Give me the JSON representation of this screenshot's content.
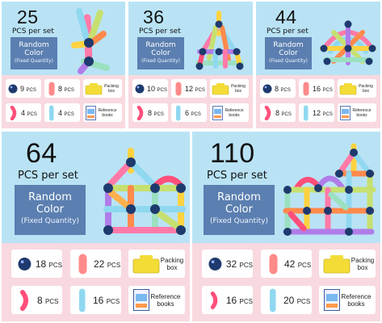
{
  "sets": [
    {
      "count": "25",
      "pcs_per_set": "PCS per set",
      "random": "Random",
      "color": "Color",
      "fixed": "(Fixed Quantity)",
      "items": [
        {
          "qty": "9",
          "unit": "PCS"
        },
        {
          "qty": "8",
          "unit": "PCS"
        },
        {
          "text": "Packing box"
        },
        {
          "qty": "4",
          "unit": "PCS"
        },
        {
          "qty": "4",
          "unit": "PCS"
        },
        {
          "text": "Reference books"
        }
      ]
    },
    {
      "count": "36",
      "pcs_per_set": "PCS per set",
      "random": "Random",
      "color": "Color",
      "fixed": "(Fixed Quantity)",
      "items": [
        {
          "qty": "10",
          "unit": "PCS"
        },
        {
          "qty": "12",
          "unit": "PCS"
        },
        {
          "text": "Packing box"
        },
        {
          "qty": "8",
          "unit": "PCS"
        },
        {
          "qty": "6",
          "unit": "PCS"
        },
        {
          "text": "Reference books"
        }
      ]
    },
    {
      "count": "44",
      "pcs_per_set": "PCS per set",
      "random": "Random",
      "color": "Color",
      "fixed": "(Fixed Quantity)",
      "items": [
        {
          "qty": "8",
          "unit": "PCS"
        },
        {
          "qty": "16",
          "unit": "PCS"
        },
        {
          "text": "Packing box"
        },
        {
          "qty": "8",
          "unit": "PCS"
        },
        {
          "qty": "12",
          "unit": "PCS"
        },
        {
          "text": "Reference books"
        }
      ]
    },
    {
      "count": "64",
      "pcs_per_set": "PCS per set",
      "random": "Random",
      "color": "Color",
      "fixed": "(Fixed Quantity)",
      "items": [
        {
          "qty": "18",
          "unit": "PCS"
        },
        {
          "qty": "22",
          "unit": "PCS"
        },
        {
          "text": "Packing box"
        },
        {
          "qty": "8",
          "unit": "PCS"
        },
        {
          "qty": "16",
          "unit": "PCS"
        },
        {
          "text": "Reference books"
        }
      ]
    },
    {
      "count": "110",
      "pcs_per_set": "PCS per set",
      "random": "Random",
      "color": "Color",
      "fixed": "(Fixed Quantity)",
      "items": [
        {
          "qty": "32",
          "unit": "PCS"
        },
        {
          "qty": "42",
          "unit": "PCS"
        },
        {
          "text": "Packing box"
        },
        {
          "qty": "16",
          "unit": "PCS"
        },
        {
          "qty": "20",
          "unit": "PCS"
        },
        {
          "text": "Reference books"
        }
      ]
    }
  ],
  "colors": {
    "blue_bg": "#b9e3f5",
    "pink_bg": "#f8d9df",
    "badge": "#5b7fb0",
    "box_yellow": "#f4dc37"
  },
  "icons": [
    "magnetic-ball-icon",
    "straight-rod-icon",
    "packing-box-icon",
    "curved-rod-icon",
    "long-rod-icon",
    "reference-book-icon"
  ]
}
